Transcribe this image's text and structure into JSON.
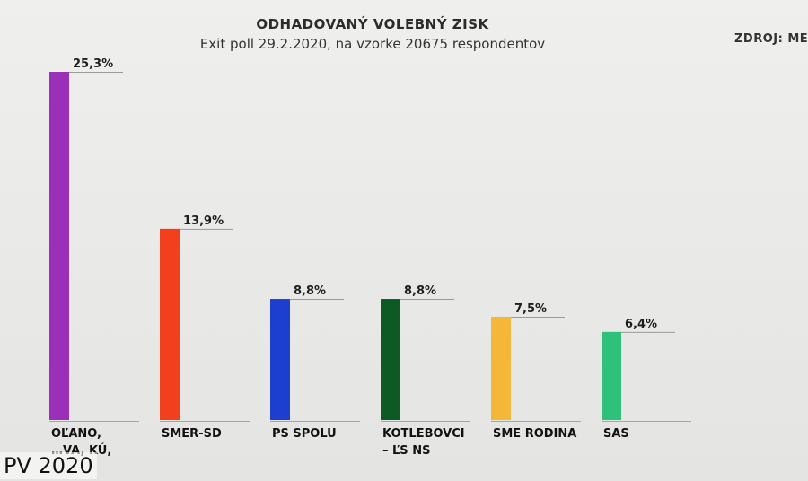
{
  "header": {
    "title": "ODHADOVANÝ VOLEBNÝ ZISK",
    "subtitle": "Exit poll 29.2.2020, na vzorke 20675 respondentov",
    "source": "ZDROJ: MED"
  },
  "watermark": "PV 2020",
  "chart_data": {
    "type": "bar",
    "title": "ODHADOVANÝ VOLEBNÝ ZISK",
    "subtitle": "Exit poll 29.2.2020, na vzorke 20675 respondentov",
    "xlabel": "",
    "ylabel": "",
    "ylim": [
      0,
      26
    ],
    "grid": false,
    "legend": "none",
    "categories": [
      [
        "OĽANO,",
        "…VA, KÚ,"
      ],
      [
        "SMER-SD"
      ],
      [
        "PS SPOLU"
      ],
      [
        "KOTLEBOVCI",
        "– ĽS NS"
      ],
      [
        "SME RODINA"
      ],
      [
        "SAS"
      ]
    ],
    "values": [
      25.3,
      13.9,
      8.8,
      8.8,
      7.5,
      6.4
    ],
    "value_labels": [
      "25,3%",
      "13,9%",
      "8,8%",
      "8,8%",
      "7,5%",
      "6,4%"
    ],
    "colors": [
      "#9a2fb8",
      "#f2401f",
      "#1d3fd0",
      "#0d5a24",
      "#f5b73a",
      "#2fc07a"
    ]
  }
}
